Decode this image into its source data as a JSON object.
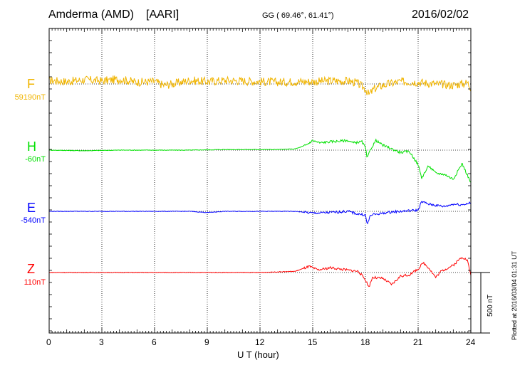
{
  "header": {
    "station": "Amderma (AMD)",
    "institute": "[AARI]",
    "coords": "GG ( 69.46°,  61.41°)",
    "date": "2016/02/02"
  },
  "side_note": "Plotted at 2016/03/04 01:31  UT",
  "scale_label": "500 nT",
  "chart_data": {
    "type": "line",
    "xlabel": "U T (hour)",
    "xlim": [
      0,
      24
    ],
    "x_ticks": [
      0,
      3,
      6,
      9,
      12,
      15,
      18,
      21,
      24
    ],
    "grid": true,
    "scale_bar_nT": 500,
    "series": [
      {
        "name": "F",
        "baseline_label": "59190nT",
        "color": "#f0b400",
        "x": [
          0,
          1,
          2,
          3,
          4,
          5,
          6,
          6.5,
          7,
          8,
          9,
          10,
          11,
          12,
          13,
          14,
          15,
          16,
          17,
          17.5,
          18,
          18.2,
          18.5,
          19,
          20,
          21,
          22,
          23,
          23.8,
          24
        ],
        "y": [
          30,
          20,
          35,
          25,
          40,
          15,
          20,
          -10,
          0,
          30,
          20,
          30,
          25,
          20,
          15,
          20,
          20,
          25,
          25,
          10,
          -40,
          -90,
          -40,
          -10,
          20,
          15,
          0,
          -10,
          10,
          -30
        ]
      },
      {
        "name": "H",
        "baseline_label": "-60nT",
        "color": "#00e000",
        "x": [
          0,
          2,
          4,
          6,
          8,
          10,
          12,
          13,
          14,
          14.6,
          15,
          15.4,
          16,
          17,
          17.3,
          17.8,
          18.0,
          18.1,
          18.3,
          18.6,
          19,
          19.5,
          20,
          20.5,
          21,
          21.2,
          21.6,
          22,
          22.5,
          23,
          23.5,
          24
        ],
        "y": [
          0,
          -5,
          0,
          0,
          0,
          5,
          5,
          5,
          10,
          40,
          80,
          60,
          70,
          80,
          60,
          70,
          20,
          -70,
          10,
          80,
          40,
          10,
          -20,
          -10,
          -120,
          -230,
          -130,
          -190,
          -200,
          -240,
          -110,
          -270
        ]
      },
      {
        "name": "E",
        "baseline_label": "-540nT",
        "color": "#0000ff",
        "x": [
          0,
          2,
          4,
          6,
          8,
          9,
          10,
          12,
          14,
          15,
          16,
          17,
          17.5,
          18,
          18.1,
          18.3,
          18.8,
          19.5,
          20,
          20.5,
          21,
          21.2,
          21.6,
          22,
          22.5,
          23,
          23.5,
          24
        ],
        "y": [
          0,
          0,
          0,
          0,
          0,
          -10,
          0,
          0,
          0,
          -15,
          -10,
          0,
          -20,
          -30,
          -110,
          -30,
          -20,
          -5,
          0,
          5,
          10,
          80,
          60,
          50,
          40,
          60,
          55,
          70
        ]
      },
      {
        "name": "Z",
        "baseline_label": "110nT",
        "color": "#ff0000",
        "x": [
          0,
          2,
          4,
          6,
          8,
          10,
          12,
          14,
          14.8,
          15.3,
          16,
          17,
          17.6,
          18.0,
          18.2,
          18.4,
          19,
          19.5,
          20,
          20.5,
          21,
          21.3,
          21.6,
          22,
          22.3,
          23,
          23.5,
          23.8,
          24
        ],
        "y": [
          0,
          0,
          0,
          0,
          0,
          0,
          0,
          10,
          50,
          20,
          40,
          20,
          10,
          -60,
          -120,
          -40,
          -50,
          -100,
          -30,
          -20,
          30,
          80,
          40,
          -40,
          10,
          60,
          130,
          100,
          -20
        ]
      }
    ]
  }
}
